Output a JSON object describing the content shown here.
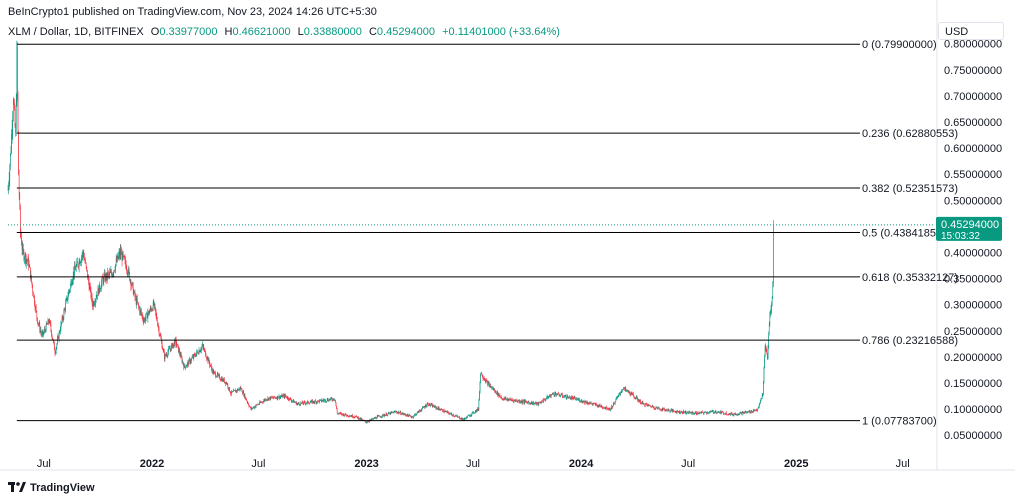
{
  "header": {
    "published": "BeInCrypto1 published on TradingView.com, Nov 23, 2024 14:26 UTC+5:30"
  },
  "symbol": {
    "name": "XLM / Dollar, 1D, BITFINEX",
    "open_label": "O",
    "open": "0.33977000",
    "high_label": "H",
    "high": "0.46621000",
    "low_label": "L",
    "low": "0.33880000",
    "close_label": "C",
    "close": "0.45294000",
    "change": "+0.11401000 (+33.64%)"
  },
  "currency": "USD",
  "footer": {
    "brand": "TradingView"
  },
  "colors": {
    "up": "#089981",
    "down": "#f23645",
    "grid": "#000000",
    "axis_text": "#131722"
  },
  "chart_data": {
    "type": "candlestick",
    "y_range": [
      0.0,
      0.8
    ],
    "y_ticks": [
      0.05,
      0.1,
      0.15,
      0.2,
      0.25,
      0.3,
      0.35,
      0.4,
      0.45,
      0.5,
      0.55,
      0.6,
      0.65,
      0.7,
      0.75,
      0.8
    ],
    "y_tick_labels": [
      "0.05000000",
      "0.10000000",
      "0.15000000",
      "0.20000000",
      "0.25000000",
      "0.30000000",
      "0.35000000",
      "0.40000000",
      "0.45000000",
      "0.50000000",
      "0.55000000",
      "0.60000000",
      "0.65000000",
      "0.70000000",
      "0.75000000",
      "0.80000000"
    ],
    "x_range": [
      "2021-05-01",
      "2025-08-25"
    ],
    "x_ticks": [
      {
        "date": "2021-07-01",
        "label": "Jul",
        "bold": false
      },
      {
        "date": "2022-01-01",
        "label": "2022",
        "bold": true
      },
      {
        "date": "2022-07-01",
        "label": "Jul",
        "bold": false
      },
      {
        "date": "2023-01-01",
        "label": "2023",
        "bold": true
      },
      {
        "date": "2023-07-01",
        "label": "Jul",
        "bold": false
      },
      {
        "date": "2024-01-01",
        "label": "2024",
        "bold": true
      },
      {
        "date": "2024-07-01",
        "label": "Jul",
        "bold": false
      },
      {
        "date": "2025-01-01",
        "label": "2025",
        "bold": true
      },
      {
        "date": "2025-07-01",
        "label": "Jul",
        "bold": false
      }
    ],
    "fib_levels": [
      {
        "ratio": "0",
        "value": 0.799,
        "label": "0 (0.79900000)"
      },
      {
        "ratio": "0.236",
        "value": 0.62880553,
        "label": "0.236 (0.62880553)"
      },
      {
        "ratio": "0.382",
        "value": 0.52351573,
        "label": "0.382 (0.52351573)"
      },
      {
        "ratio": "0.5",
        "value": 0.4384185,
        "label": "0.5 (0.43841850)"
      },
      {
        "ratio": "0.618",
        "value": 0.35332127,
        "label": "0.618 (0.35332127)"
      },
      {
        "ratio": "0.786",
        "value": 0.23216588,
        "label": "0.786 (0.23216588)"
      },
      {
        "ratio": "1",
        "value": 0.077837,
        "label": "1 (0.07783700)"
      }
    ],
    "fib_start_date": "2021-05-16",
    "last_price": {
      "value": 0.45294,
      "label": "0.45294000",
      "countdown": "15:03:32"
    },
    "price_path": [
      [
        "2021-05-01",
        0.52
      ],
      [
        "2021-05-06",
        0.6
      ],
      [
        "2021-05-10",
        0.7
      ],
      [
        "2021-05-14",
        0.62
      ],
      [
        "2021-05-16",
        0.78
      ],
      [
        "2021-05-19",
        0.55
      ],
      [
        "2021-05-22",
        0.44
      ],
      [
        "2021-05-26",
        0.4
      ],
      [
        "2021-06-05",
        0.38
      ],
      [
        "2021-06-20",
        0.27
      ],
      [
        "2021-06-28",
        0.24
      ],
      [
        "2021-07-10",
        0.27
      ],
      [
        "2021-07-20",
        0.21
      ],
      [
        "2021-08-05",
        0.29
      ],
      [
        "2021-08-20",
        0.36
      ],
      [
        "2021-09-06",
        0.4
      ],
      [
        "2021-09-22",
        0.3
      ],
      [
        "2021-10-10",
        0.35
      ],
      [
        "2021-10-25",
        0.36
      ],
      [
        "2021-11-08",
        0.4
      ],
      [
        "2021-11-20",
        0.37
      ],
      [
        "2021-12-04",
        0.31
      ],
      [
        "2021-12-18",
        0.27
      ],
      [
        "2022-01-04",
        0.3
      ],
      [
        "2022-01-22",
        0.2
      ],
      [
        "2022-02-10",
        0.23
      ],
      [
        "2022-02-25",
        0.18
      ],
      [
        "2022-03-28",
        0.22
      ],
      [
        "2022-04-15",
        0.17
      ],
      [
        "2022-05-08",
        0.15
      ],
      [
        "2022-05-15",
        0.13
      ],
      [
        "2022-06-01",
        0.14
      ],
      [
        "2022-06-18",
        0.1
      ],
      [
        "2022-07-15",
        0.12
      ],
      [
        "2022-08-15",
        0.125
      ],
      [
        "2022-09-05",
        0.11
      ],
      [
        "2022-10-10",
        0.115
      ],
      [
        "2022-11-08",
        0.12
      ],
      [
        "2022-11-12",
        0.092
      ],
      [
        "2022-12-15",
        0.085
      ],
      [
        "2022-12-31",
        0.075
      ],
      [
        "2023-01-20",
        0.085
      ],
      [
        "2023-02-20",
        0.095
      ],
      [
        "2023-03-20",
        0.085
      ],
      [
        "2023-04-15",
        0.11
      ],
      [
        "2023-05-15",
        0.095
      ],
      [
        "2023-06-15",
        0.08
      ],
      [
        "2023-07-10",
        0.1
      ],
      [
        "2023-07-14",
        0.17
      ],
      [
        "2023-07-25",
        0.15
      ],
      [
        "2023-08-20",
        0.12
      ],
      [
        "2023-09-20",
        0.115
      ],
      [
        "2023-10-20",
        0.11
      ],
      [
        "2023-11-15",
        0.13
      ],
      [
        "2023-12-01",
        0.125
      ],
      [
        "2023-12-20",
        0.12
      ],
      [
        "2024-01-20",
        0.11
      ],
      [
        "2024-02-20",
        0.1
      ],
      [
        "2024-03-12",
        0.14
      ],
      [
        "2024-03-25",
        0.13
      ],
      [
        "2024-04-15",
        0.11
      ],
      [
        "2024-05-15",
        0.1
      ],
      [
        "2024-06-15",
        0.095
      ],
      [
        "2024-07-15",
        0.092
      ],
      [
        "2024-08-15",
        0.095
      ],
      [
        "2024-09-15",
        0.09
      ],
      [
        "2024-10-15",
        0.095
      ],
      [
        "2024-10-28",
        0.1
      ],
      [
        "2024-11-05",
        0.13
      ],
      [
        "2024-11-09",
        0.22
      ],
      [
        "2024-11-13",
        0.2
      ],
      [
        "2024-11-17",
        0.28
      ],
      [
        "2024-11-21",
        0.31
      ],
      [
        "2024-11-22",
        0.34
      ],
      [
        "2024-11-23",
        0.45
      ]
    ]
  }
}
